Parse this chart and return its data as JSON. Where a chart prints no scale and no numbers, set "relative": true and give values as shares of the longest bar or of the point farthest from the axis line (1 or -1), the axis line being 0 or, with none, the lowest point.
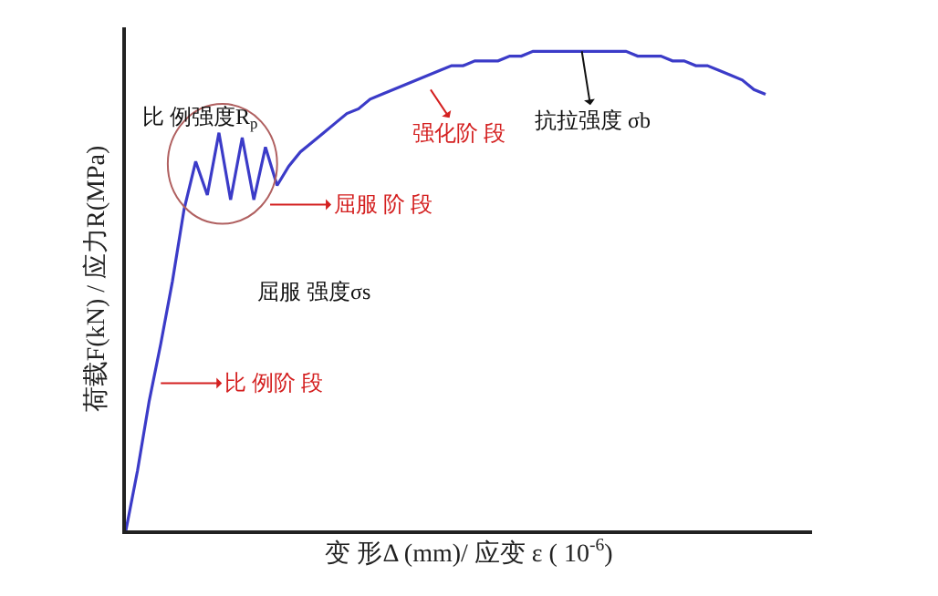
{
  "chart_data": {
    "type": "line",
    "relative": true,
    "xlabel": "变 形Δ (mm)/ 应变 ε ( 10$^{-6}$)",
    "ylabel": "荷载F(kN) / 应力R(MPa)",
    "categories": [
      null,
      null,
      null,
      null,
      null,
      null,
      null,
      null,
      null,
      null,
      null,
      null,
      null,
      null,
      null,
      null,
      null,
      null,
      null,
      null,
      null,
      null,
      null,
      null,
      null,
      null,
      null,
      null,
      null,
      null,
      null,
      null,
      null,
      null,
      null,
      null,
      null,
      null,
      null,
      null,
      null,
      null,
      null,
      null,
      null,
      null,
      null,
      null,
      null,
      null,
      null,
      null,
      null,
      null,
      null,
      null,
      null,
      null,
      null,
      null
    ],
    "series": [
      {
        "color": "#3b3bc8",
        "values": [
          0,
          0.125,
          0.27,
          0.39,
          0.52,
          0.67,
          0.77,
          0.7,
          0.83,
          0.69,
          0.82,
          0.69,
          0.8,
          0.72,
          0.76,
          0.79,
          0.81,
          0.83,
          0.85,
          0.87,
          0.88,
          0.9,
          0.91,
          0.92,
          0.93,
          0.94,
          0.95,
          0.96,
          0.97,
          0.97,
          0.98,
          0.98,
          0.98,
          0.99,
          0.99,
          1.0,
          1.0,
          1.0,
          1.0,
          1.0,
          1.0,
          1.0,
          1.0,
          1.0,
          0.99,
          0.99,
          0.99,
          0.98,
          0.98,
          0.97,
          0.97,
          0.96,
          0.95,
          0.94,
          0.92,
          0.91,
          null,
          null,
          null,
          null
        ]
      }
    ],
    "annotations": [
      "比 例强度R$_{p}$",
      "屈服 阶 段",
      "强化阶 段",
      "抗拉强度 σb",
      "屈服 强度σs",
      "比 例阶 段"
    ],
    "marker": "none",
    "line_style": "solid"
  }
}
